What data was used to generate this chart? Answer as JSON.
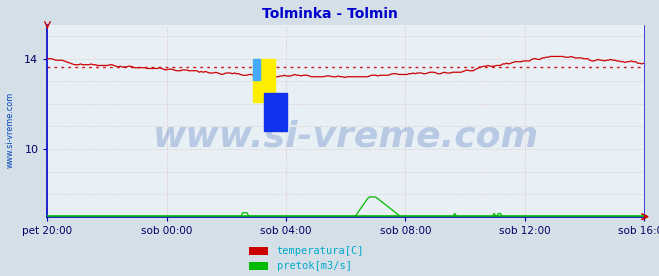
{
  "title": "Tolminka - Tolmin",
  "title_color": "#0000cc",
  "title_fontsize": 10,
  "bg_color": "#d4dfe8",
  "plot_bg_color": "#e8eff5",
  "border_left_color": "#0000cc",
  "border_bottom_color": "#0000cc",
  "x_tick_labels": [
    "pet 20:00",
    "sob 00:00",
    "sob 04:00",
    "sob 08:00",
    "sob 12:00",
    "sob 16:00"
  ],
  "x_tick_fracs": [
    0.0,
    0.2,
    0.4,
    0.6,
    0.8,
    1.0
  ],
  "y_ticks": [
    10,
    14
  ],
  "y_min": 7.0,
  "y_max": 15.5,
  "grid_color": "#ddbbbb",
  "temp_color": "#cc0000",
  "flow_color": "#00bb00",
  "avg_color": "#cc0000",
  "avg_value": 13.62,
  "watermark_text": "www.si-vreme.com",
  "watermark_color": "#1144aa",
  "watermark_alpha": 0.22,
  "watermark_fontsize": 26,
  "sidebar_text": "www.si-vreme.com",
  "sidebar_color": "#0044bb",
  "legend_labels": [
    "temperatura[C]",
    "pretok[m3/s]"
  ],
  "legend_colors": [
    "#cc0000",
    "#00bb00"
  ],
  "legend_label_color": "#00aacc",
  "n_points": 288,
  "arrow_color": "#cc0000",
  "bottom_line_color": "#2222cc"
}
